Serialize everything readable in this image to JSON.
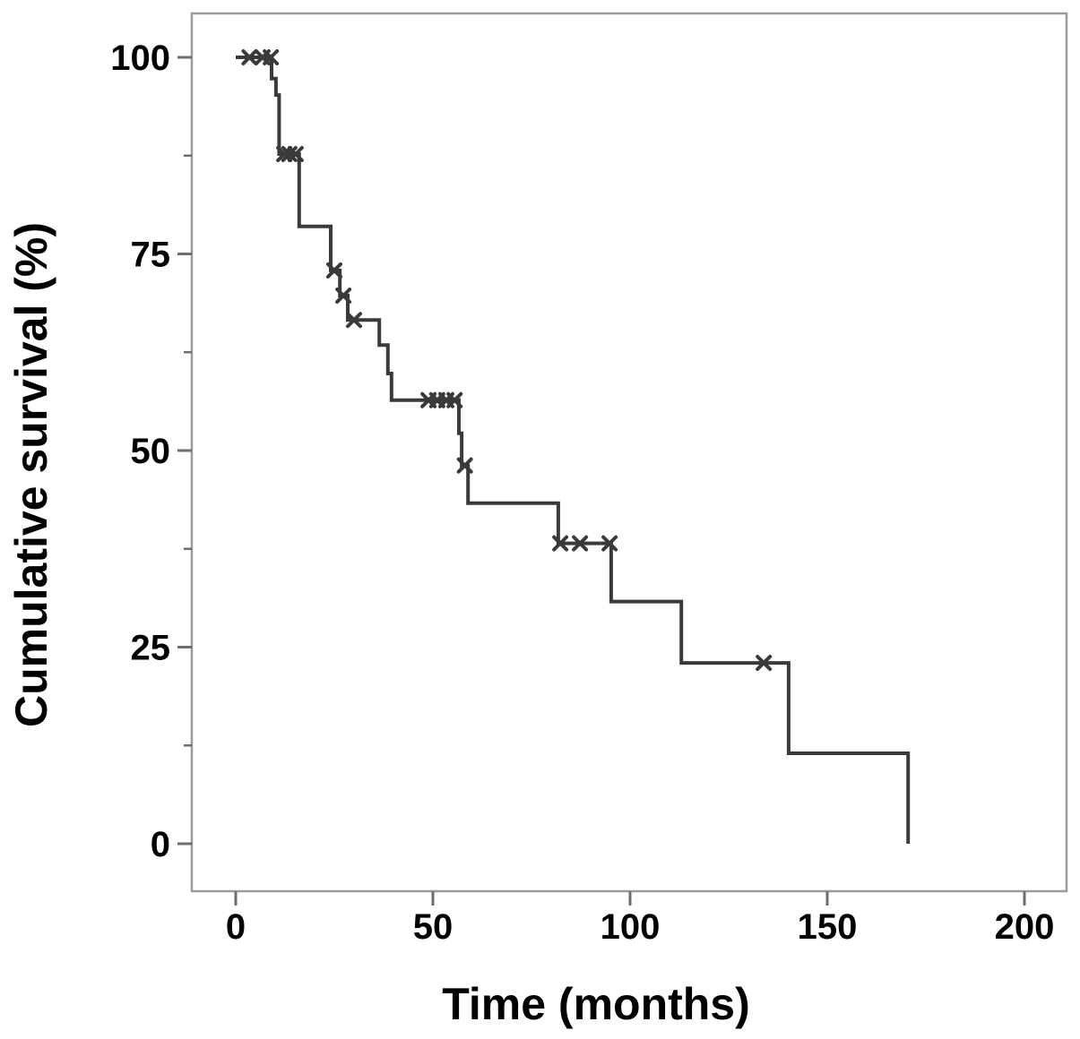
{
  "chart_data": {
    "type": "line",
    "subtype": "kaplan-meier-survival-step",
    "title": "",
    "xlabel": "Time (months)",
    "ylabel": "Cumulative survival (%)",
    "xlim": [
      0,
      200
    ],
    "ylim": [
      0,
      100
    ],
    "x_ticks": [
      0,
      50,
      100,
      150,
      200
    ],
    "y_ticks": [
      0,
      25,
      50,
      75,
      100
    ],
    "y_minor_ticks": [
      12.5,
      37.5,
      62.5,
      87.5
    ],
    "grid": false,
    "legend": false,
    "series": [
      {
        "name": "Cumulative survival",
        "start": [
          0,
          100
        ],
        "steps": [
          [
            9.1,
            97.3
          ],
          [
            10.2,
            95.2
          ],
          [
            11.0,
            87.7
          ],
          [
            16.1,
            78.5
          ],
          [
            24.1,
            72.9
          ],
          [
            26.4,
            69.7
          ],
          [
            28.4,
            66.6
          ],
          [
            36.4,
            63.4
          ],
          [
            38.6,
            59.8
          ],
          [
            39.5,
            56.4
          ],
          [
            56.6,
            52.2
          ],
          [
            57.3,
            48.1
          ],
          [
            58.9,
            43.3
          ],
          [
            81.8,
            38.2
          ],
          [
            95.2,
            30.8
          ],
          [
            113.0,
            23.0
          ],
          [
            140.2,
            11.5
          ],
          [
            170.5,
            0.0
          ]
        ],
        "censor_marks": [
          [
            3.5,
            100
          ],
          [
            6.8,
            100
          ],
          [
            8.9,
            100
          ],
          [
            12.3,
            87.7
          ],
          [
            13.6,
            87.7
          ],
          [
            15.2,
            87.7
          ],
          [
            25.0,
            72.9
          ],
          [
            27.3,
            69.7
          ],
          [
            30.0,
            66.6
          ],
          [
            48.9,
            56.4
          ],
          [
            51.1,
            56.4
          ],
          [
            53.4,
            56.4
          ],
          [
            55.5,
            56.4
          ],
          [
            58.1,
            48.1
          ],
          [
            82.3,
            38.2
          ],
          [
            87.3,
            38.2
          ],
          [
            94.8,
            38.2
          ],
          [
            133.9,
            23.0
          ]
        ]
      }
    ],
    "colors": {
      "curve": "#3a3a3a",
      "frame": "#9b9b9b",
      "tick": "#6e6e6e",
      "text": "#000000",
      "background": "#ffffff"
    }
  }
}
